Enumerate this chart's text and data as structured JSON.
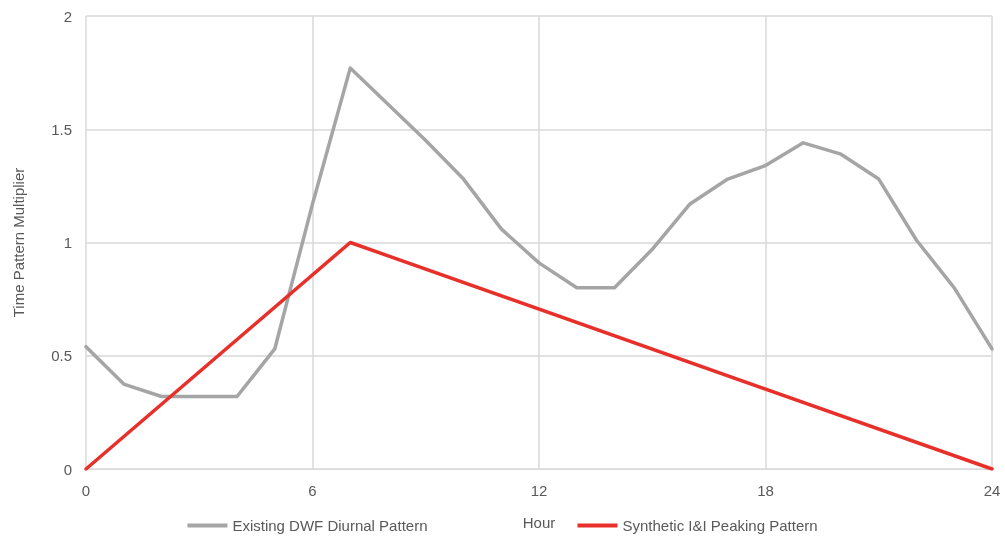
{
  "chart_data": {
    "type": "line",
    "xlabel": "Hour",
    "ylabel": "Time Pattern Multiplier",
    "xlim": [
      0,
      24
    ],
    "xticks": [
      0,
      6,
      12,
      18,
      24
    ],
    "ylim": [
      0,
      2
    ],
    "yticks": [
      0,
      0.5,
      1,
      1.5,
      2
    ],
    "grid": true,
    "legend": "bottom",
    "marker": "none",
    "line_style": "solid",
    "series": [
      {
        "name": "Existing DWF Diurnal Pattern",
        "color": "#a5a5a5",
        "x": [
          0,
          1,
          2,
          3,
          4,
          5,
          6,
          7,
          8,
          9,
          10,
          11,
          12,
          13,
          14,
          15,
          16,
          17,
          18,
          19,
          20,
          21,
          22,
          23,
          24
        ],
        "values": [
          0.54,
          0.375,
          0.32,
          0.32,
          0.32,
          0.53,
          1.17,
          1.77,
          1.61,
          1.45,
          1.28,
          1.06,
          0.91,
          0.8,
          0.8,
          0.97,
          1.17,
          1.28,
          1.34,
          1.44,
          1.39,
          1.28,
          1.01,
          0.8,
          0.53
        ]
      },
      {
        "name": "Synthetic I&I Peaking Pattern",
        "color": "#e8302a",
        "x": [
          0,
          7,
          24
        ],
        "values": [
          0,
          1,
          0
        ]
      }
    ]
  }
}
